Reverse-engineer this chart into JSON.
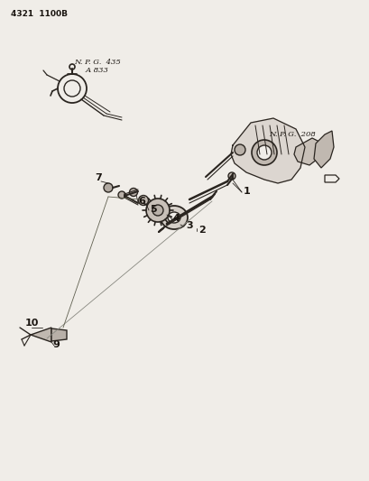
{
  "title_text": "4321  1100B",
  "background_color": "#f0ede8",
  "line_color": "#2a2520",
  "text_color": "#1a1510",
  "npg1_label": "N. P. G.  435\n     A 833",
  "npg2_label": "N. P. G.  208",
  "fig_width": 4.1,
  "fig_height": 5.33,
  "dpi": 100
}
